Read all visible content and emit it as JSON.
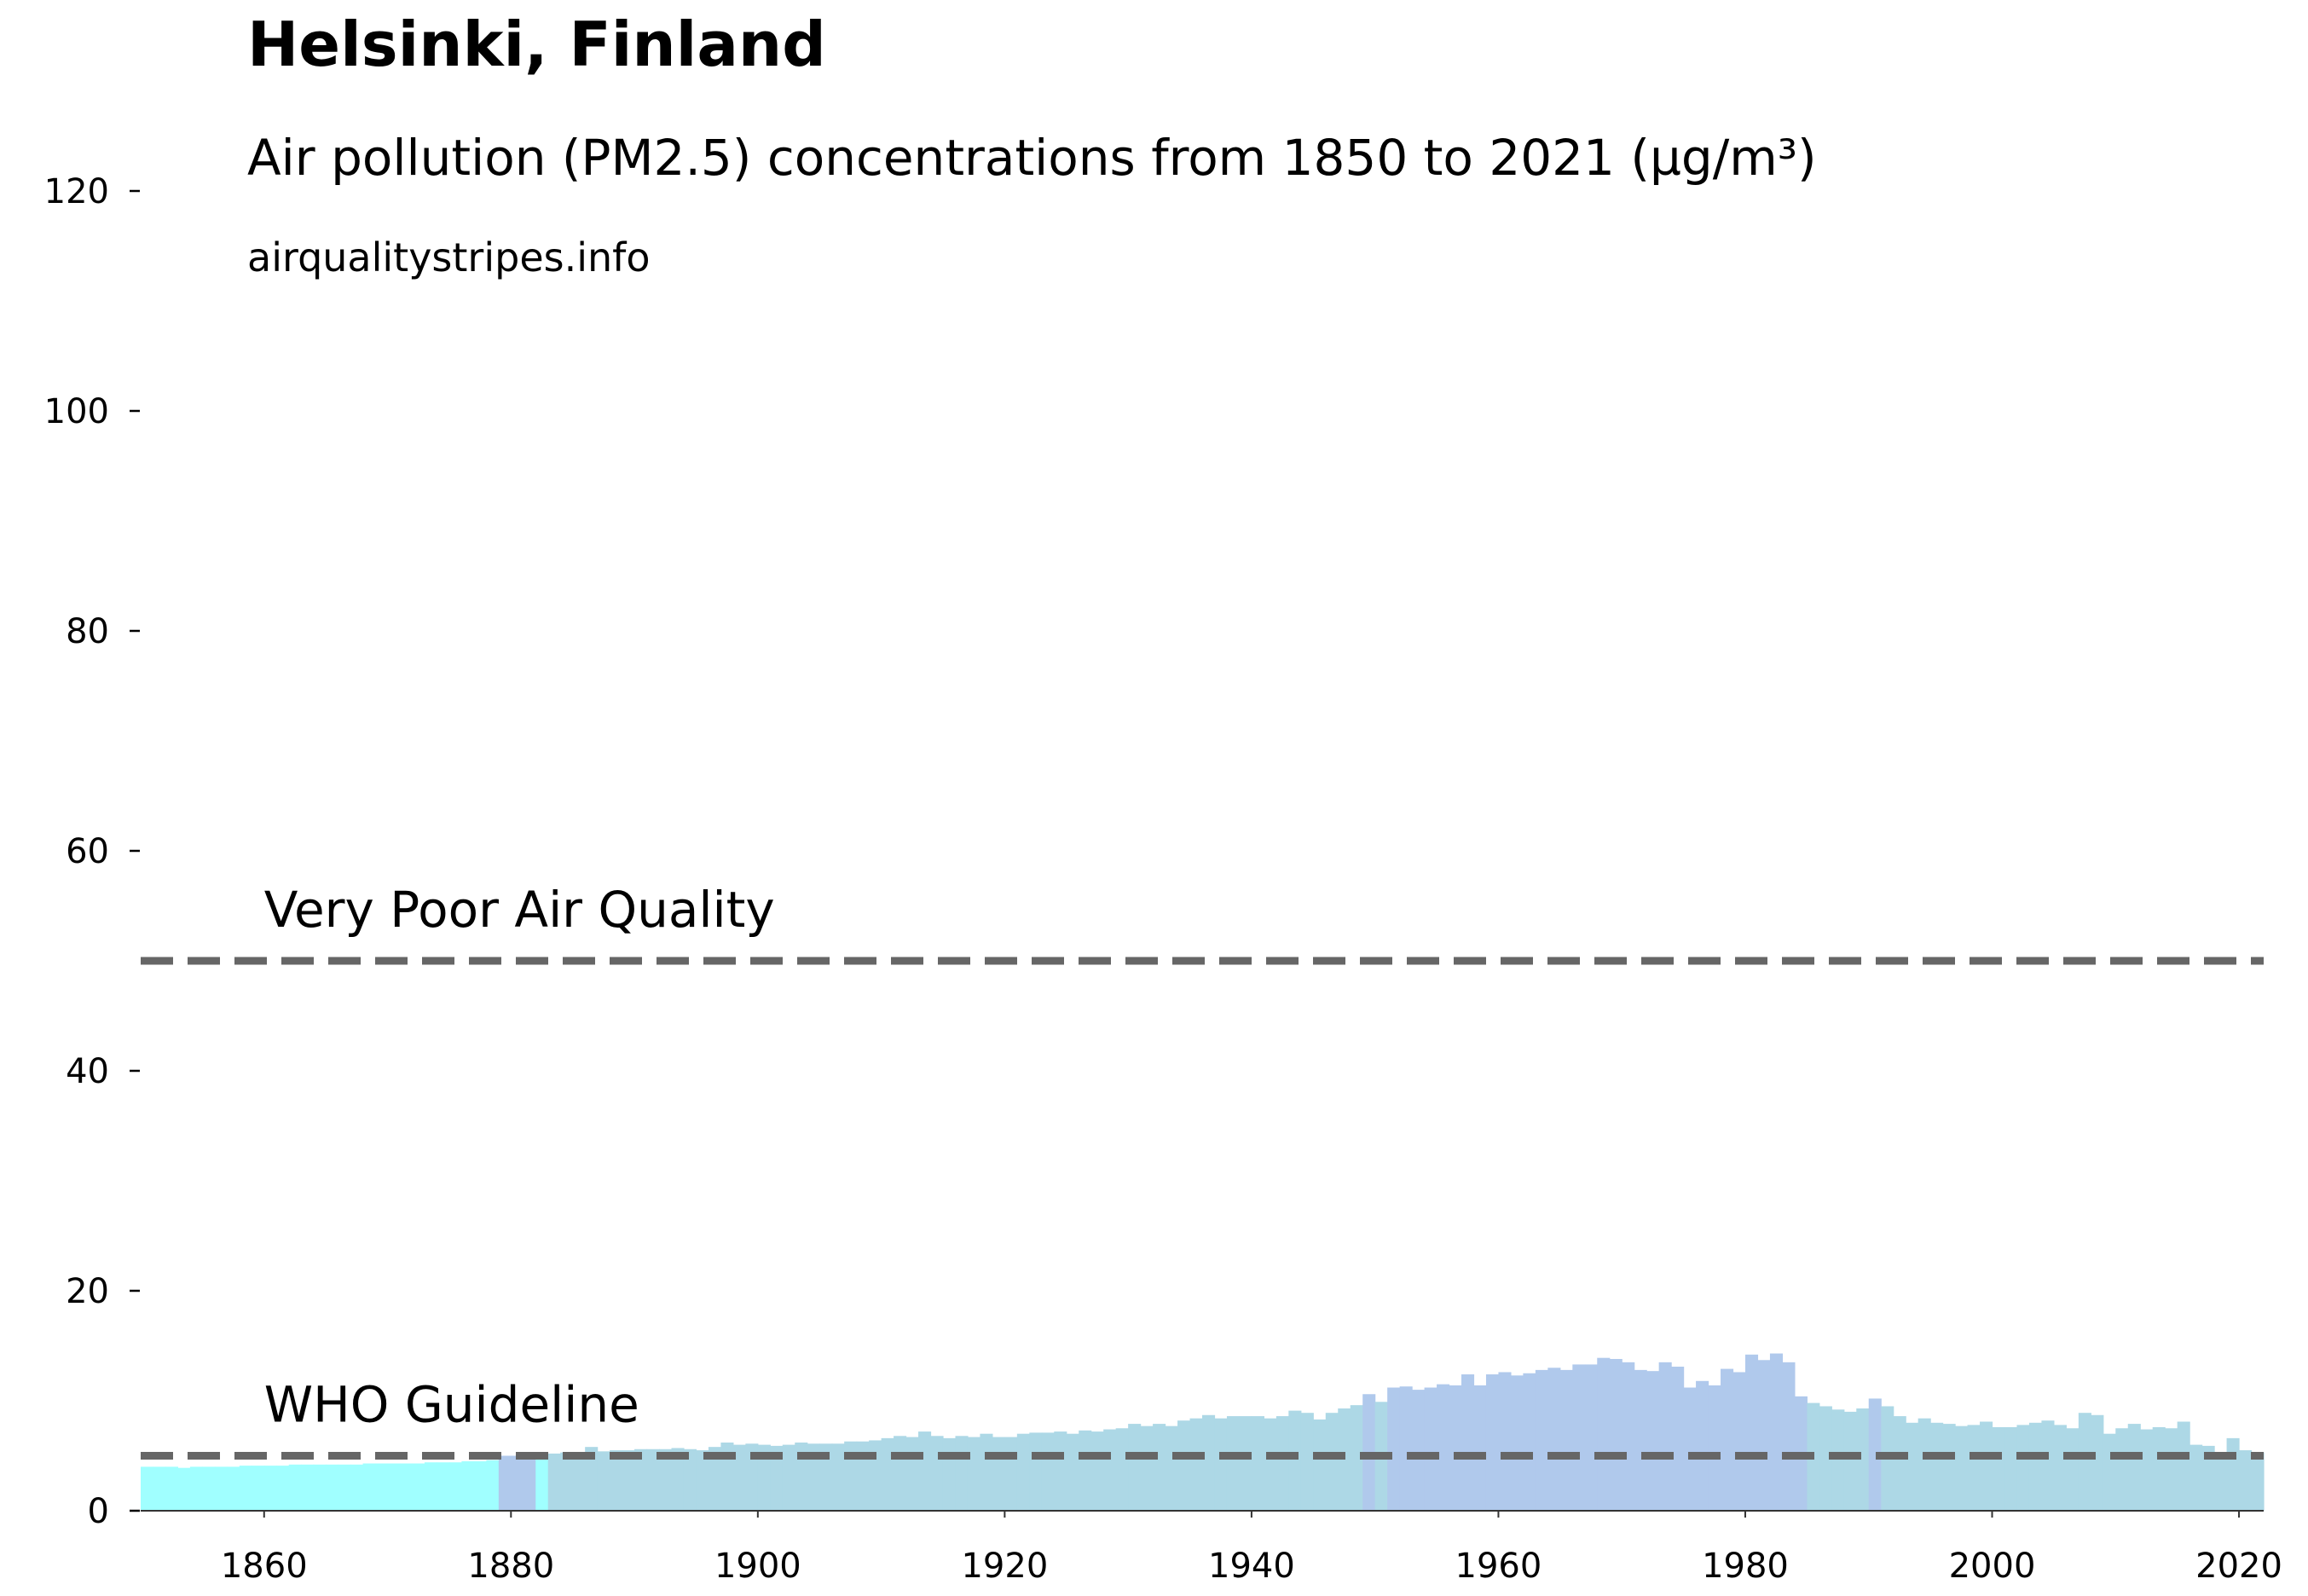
{
  "chart_data": {
    "type": "bar",
    "title": "Helsinki, Finland",
    "subtitle": "Air pollution (PM2.5) concentrations from 1850 to 2021 (µg/m³)",
    "source": "airqualitystripes.info",
    "x": [
      1850,
      1851,
      1852,
      1853,
      1854,
      1855,
      1856,
      1857,
      1858,
      1859,
      1860,
      1861,
      1862,
      1863,
      1864,
      1865,
      1866,
      1867,
      1868,
      1869,
      1870,
      1871,
      1872,
      1873,
      1874,
      1875,
      1876,
      1877,
      1878,
      1879,
      1880,
      1881,
      1882,
      1883,
      1884,
      1885,
      1886,
      1887,
      1888,
      1889,
      1890,
      1891,
      1892,
      1893,
      1894,
      1895,
      1896,
      1897,
      1898,
      1899,
      1900,
      1901,
      1902,
      1903,
      1904,
      1905,
      1906,
      1907,
      1908,
      1909,
      1910,
      1911,
      1912,
      1913,
      1914,
      1915,
      1916,
      1917,
      1918,
      1919,
      1920,
      1921,
      1922,
      1923,
      1924,
      1925,
      1926,
      1927,
      1928,
      1929,
      1930,
      1931,
      1932,
      1933,
      1934,
      1935,
      1936,
      1937,
      1938,
      1939,
      1940,
      1941,
      1942,
      1943,
      1944,
      1945,
      1946,
      1947,
      1948,
      1949,
      1950,
      1951,
      1952,
      1953,
      1954,
      1955,
      1956,
      1957,
      1958,
      1959,
      1960,
      1961,
      1962,
      1963,
      1964,
      1965,
      1966,
      1967,
      1968,
      1969,
      1970,
      1971,
      1972,
      1973,
      1974,
      1975,
      1976,
      1977,
      1978,
      1979,
      1980,
      1981,
      1982,
      1983,
      1984,
      1985,
      1986,
      1987,
      1988,
      1989,
      1990,
      1991,
      1992,
      1993,
      1994,
      1995,
      1996,
      1997,
      1998,
      1999,
      2000,
      2001,
      2002,
      2003,
      2004,
      2005,
      2006,
      2007,
      2008,
      2009,
      2010,
      2011,
      2012,
      2013,
      2014,
      2015,
      2016,
      2017,
      2018,
      2019,
      2020,
      2021
    ],
    "values": [
      4.0,
      4.0,
      4.0,
      3.9,
      4.0,
      4.0,
      4.0,
      4.0,
      4.1,
      4.1,
      4.1,
      4.1,
      4.2,
      4.2,
      4.2,
      4.2,
      4.2,
      4.2,
      4.3,
      4.3,
      4.3,
      4.3,
      4.3,
      4.4,
      4.4,
      4.4,
      4.5,
      4.5,
      4.6,
      5.0,
      5.0,
      5.1,
      4.9,
      5.2,
      5.3,
      5.3,
      5.8,
      5.4,
      5.5,
      5.5,
      5.6,
      5.6,
      5.6,
      5.7,
      5.6,
      5.5,
      5.8,
      6.2,
      6.0,
      6.1,
      6.0,
      5.9,
      6.0,
      6.2,
      6.1,
      6.1,
      6.1,
      6.3,
      6.3,
      6.4,
      6.6,
      6.8,
      6.7,
      7.2,
      6.8,
      6.6,
      6.8,
      6.7,
      7.0,
      6.7,
      6.7,
      7.0,
      7.1,
      7.1,
      7.2,
      7.0,
      7.3,
      7.2,
      7.4,
      7.5,
      7.9,
      7.7,
      7.9,
      7.7,
      8.2,
      8.4,
      8.7,
      8.4,
      8.6,
      8.6,
      8.6,
      8.4,
      8.6,
      9.1,
      8.9,
      8.3,
      8.9,
      9.3,
      9.6,
      10.6,
      9.9,
      11.2,
      11.3,
      11.0,
      11.2,
      11.5,
      11.4,
      12.4,
      11.4,
      12.4,
      12.6,
      12.3,
      12.5,
      12.8,
      13.0,
      12.8,
      13.3,
      13.3,
      13.9,
      13.8,
      13.5,
      12.8,
      12.7,
      13.5,
      13.1,
      11.2,
      11.8,
      11.4,
      12.9,
      12.6,
      14.2,
      13.7,
      14.3,
      13.5,
      10.4,
      9.8,
      9.5,
      9.2,
      9.0,
      9.3,
      10.2,
      9.5,
      8.6,
      8.0,
      8.4,
      8.0,
      7.9,
      7.7,
      7.8,
      8.1,
      7.6,
      7.6,
      7.8,
      8.0,
      8.2,
      7.8,
      7.5,
      8.9,
      8.7,
      7.0,
      7.5,
      7.9,
      7.4,
      7.6,
      7.5,
      8.1,
      6.0,
      5.9,
      5.3,
      6.6,
      5.5,
      5.3
    ],
    "colors": [
      "#a0ffff",
      "#a0ffff",
      "#a0ffff",
      "#a0ffff",
      "#a0ffff",
      "#a0ffff",
      "#a0ffff",
      "#a0ffff",
      "#a0ffff",
      "#a0ffff",
      "#a0ffff",
      "#a0ffff",
      "#a0ffff",
      "#a0ffff",
      "#a0ffff",
      "#a0ffff",
      "#a0ffff",
      "#a0ffff",
      "#a0ffff",
      "#a0ffff",
      "#a0ffff",
      "#a0ffff",
      "#a0ffff",
      "#a0ffff",
      "#a0ffff",
      "#a0ffff",
      "#a0ffff",
      "#a0ffff",
      "#a0ffff",
      "#b0c9ec",
      "#b0c9ec",
      "#b0c9ec",
      "#a0ffff",
      "#add8e6",
      "#add8e6",
      "#add8e6",
      "#add8e6",
      "#add8e6",
      "#add8e6",
      "#add8e6",
      "#add8e6",
      "#add8e6",
      "#add8e6",
      "#add8e6",
      "#add8e6",
      "#add8e6",
      "#add8e6",
      "#add8e6",
      "#add8e6",
      "#add8e6",
      "#add8e6",
      "#add8e6",
      "#add8e6",
      "#add8e6",
      "#add8e6",
      "#add8e6",
      "#add8e6",
      "#add8e6",
      "#add8e6",
      "#add8e6",
      "#add8e6",
      "#add8e6",
      "#add8e6",
      "#add8e6",
      "#add8e6",
      "#add8e6",
      "#add8e6",
      "#add8e6",
      "#add8e6",
      "#add8e6",
      "#add8e6",
      "#add8e6",
      "#add8e6",
      "#add8e6",
      "#add8e6",
      "#add8e6",
      "#add8e6",
      "#add8e6",
      "#add8e6",
      "#add8e6",
      "#add8e6",
      "#add8e6",
      "#add8e6",
      "#add8e6",
      "#add8e6",
      "#add8e6",
      "#add8e6",
      "#add8e6",
      "#add8e6",
      "#add8e6",
      "#add8e6",
      "#add8e6",
      "#add8e6",
      "#add8e6",
      "#add8e6",
      "#add8e6",
      "#add8e6",
      "#add8e6",
      "#add8e6",
      "#b0c9ec",
      "#add8e6",
      "#b0c9ec",
      "#b0c9ec",
      "#b0c9ec",
      "#b0c9ec",
      "#b0c9ec",
      "#b0c9ec",
      "#b0c9ec",
      "#b0c9ec",
      "#b0c9ec",
      "#b0c9ec",
      "#b0c9ec",
      "#b0c9ec",
      "#b0c9ec",
      "#b0c9ec",
      "#b0c9ec",
      "#b0c9ec",
      "#b0c9ec",
      "#b0c9ec",
      "#b0c9ec",
      "#b0c9ec",
      "#b0c9ec",
      "#b0c9ec",
      "#b0c9ec",
      "#b0c9ec",
      "#b0c9ec",
      "#b0c9ec",
      "#b0c9ec",
      "#b0c9ec",
      "#b0c9ec",
      "#b0c9ec",
      "#b0c9ec",
      "#b0c9ec",
      "#b0c9ec",
      "#b0c9ec",
      "#add8e6",
      "#add8e6",
      "#add8e6",
      "#add8e6",
      "#add8e6",
      "#b0c9ec",
      "#add8e6",
      "#add8e6",
      "#add8e6",
      "#add8e6",
      "#add8e6",
      "#add8e6",
      "#add8e6",
      "#add8e6",
      "#add8e6",
      "#add8e6",
      "#add8e6",
      "#add8e6",
      "#add8e6",
      "#add8e6",
      "#add8e6",
      "#add8e6",
      "#add8e6",
      "#add8e6",
      "#add8e6",
      "#add8e6",
      "#add8e6",
      "#add8e6",
      "#add8e6",
      "#add8e6",
      "#add8e6",
      "#add8e6",
      "#add8e6",
      "#add8e6",
      "#add8e6",
      "#add8e6",
      "#add8e6"
    ],
    "reference_lines": [
      {
        "value": 50,
        "label": "Very Poor Air Quality"
      },
      {
        "value": 5,
        "label": "WHO Guideline"
      }
    ],
    "reference_color": "#666666",
    "xlim": [
      1850,
      2022
    ],
    "ylim": [
      0,
      120
    ],
    "xticks": [
      1860,
      1880,
      1900,
      1920,
      1940,
      1960,
      1980,
      2000,
      2020
    ],
    "yticks": [
      0,
      20,
      40,
      60,
      80,
      100,
      120
    ]
  }
}
